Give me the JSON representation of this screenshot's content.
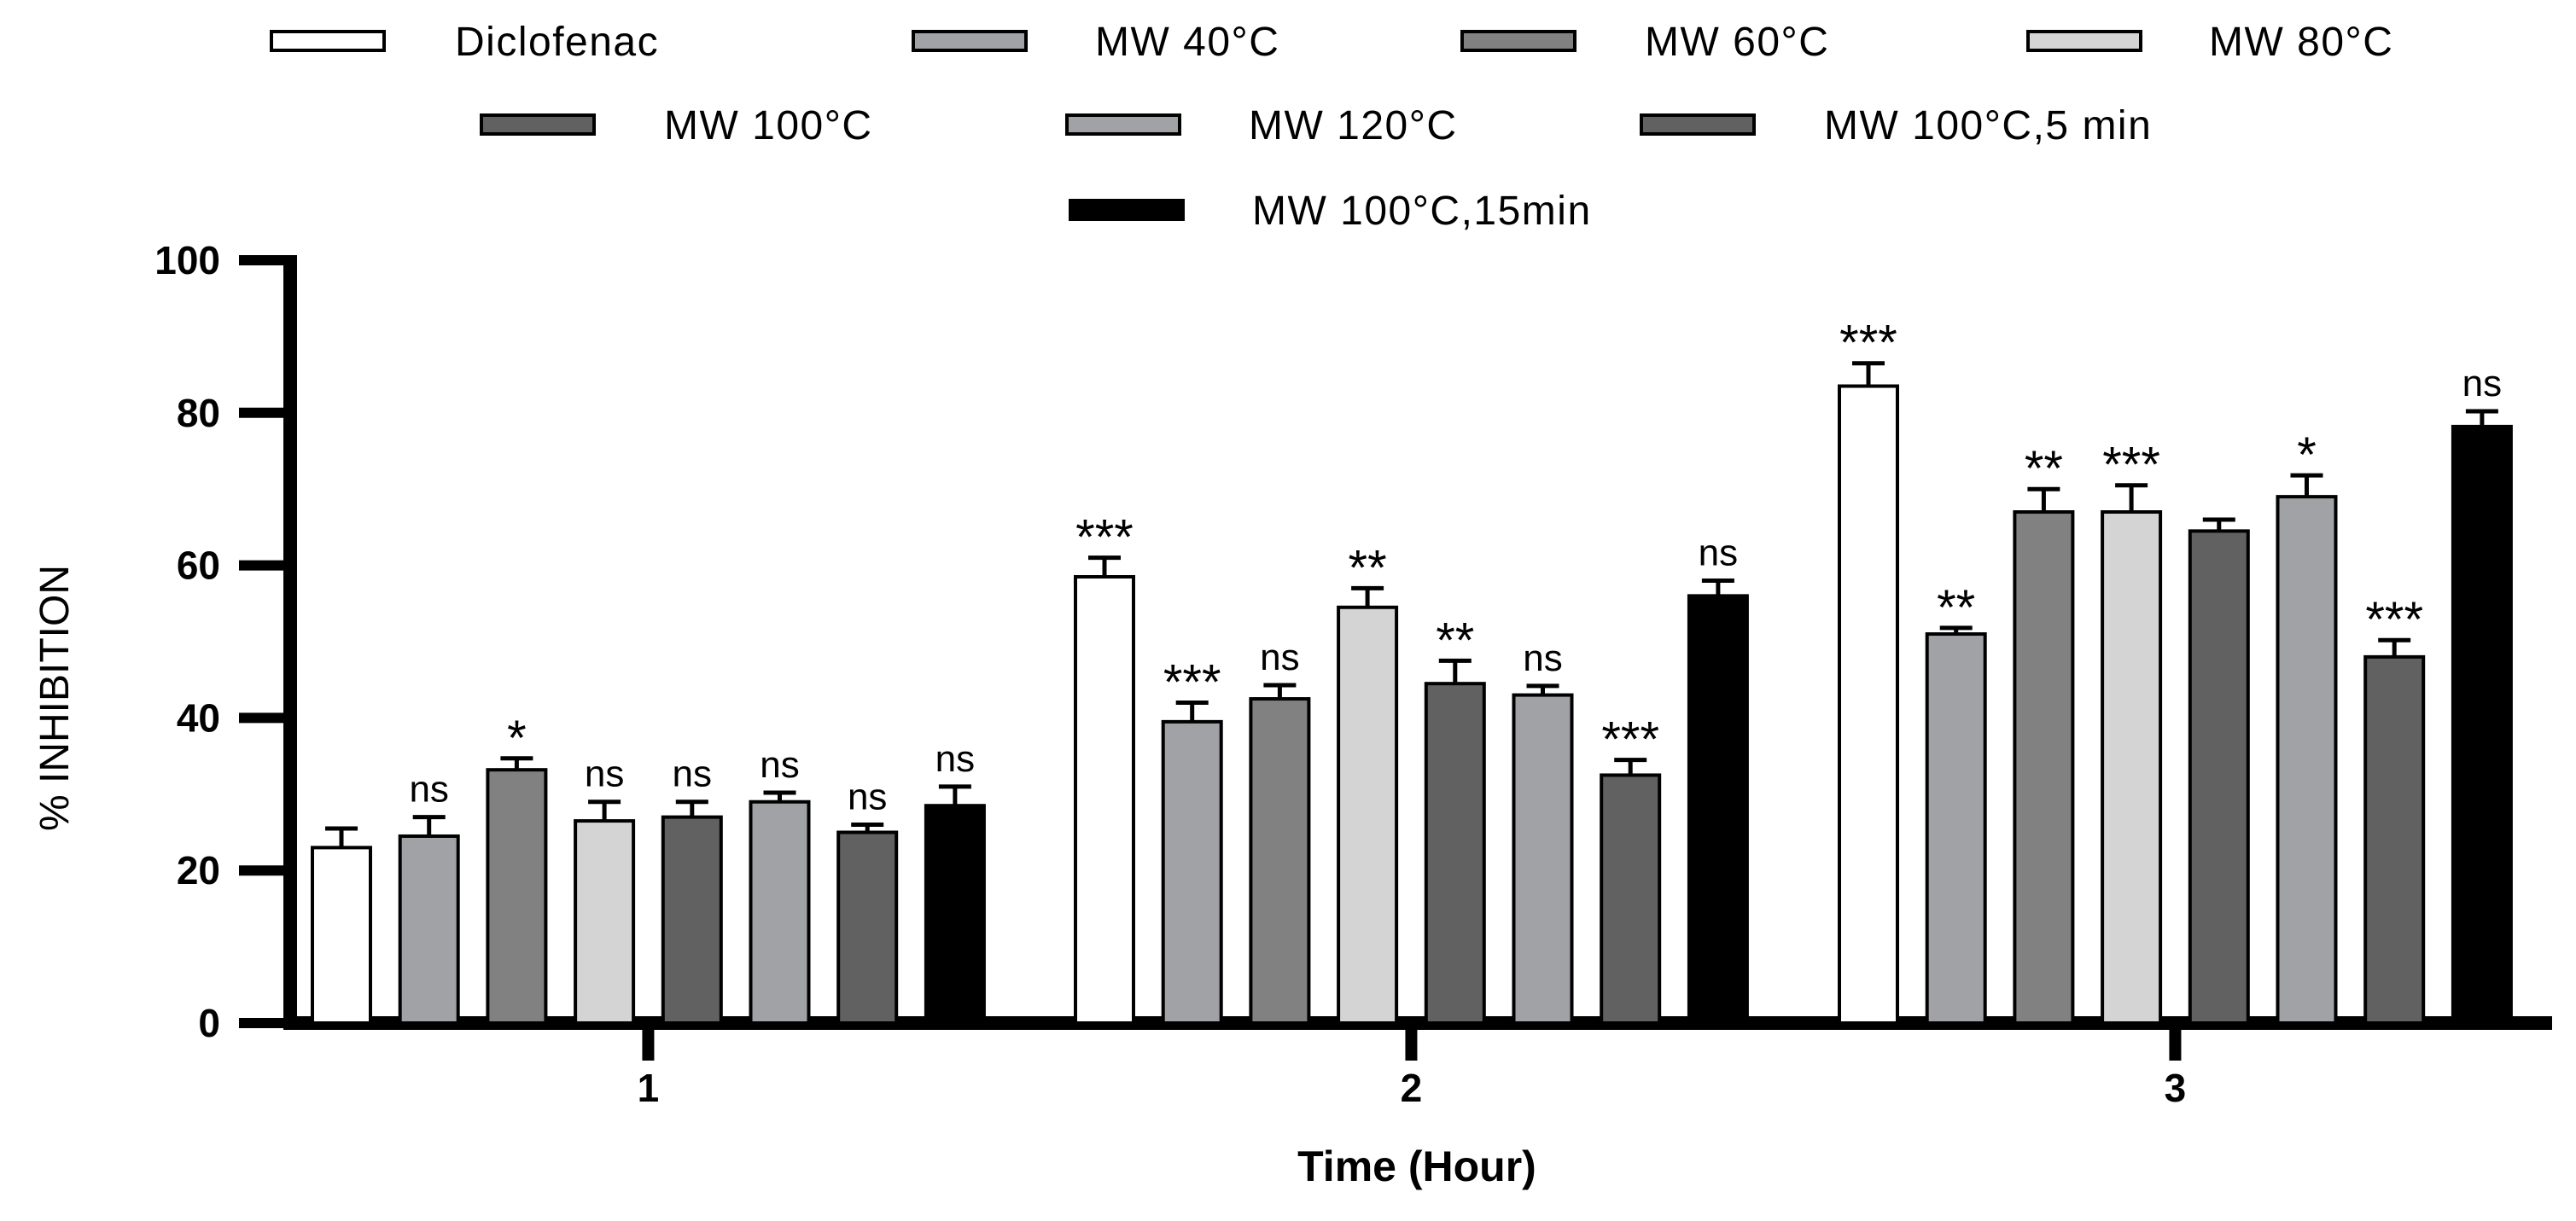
{
  "chart_data": {
    "type": "bar",
    "title": "",
    "xlabel": "Time (Hour)",
    "ylabel": "% INHIBITION",
    "ylim": [
      0,
      100
    ],
    "yticks": [
      0,
      20,
      40,
      60,
      80,
      100
    ],
    "categories": [
      "1",
      "2",
      "3"
    ],
    "legend_position": "top",
    "series": [
      {
        "name": "Diclofenac",
        "color": "#ffffff",
        "values": [
          23,
          58.5,
          83.5
        ],
        "errors": [
          2.5,
          2.5,
          3.0
        ],
        "significance": [
          "",
          "***",
          "***"
        ]
      },
      {
        "name": "MW 40°C",
        "color": "#a1a2a6",
        "values": [
          24.5,
          39.5,
          51
        ],
        "errors": [
          2.5,
          2.5,
          0.8
        ],
        "significance": [
          "ns",
          "***",
          "**"
        ]
      },
      {
        "name": "MW 60°C",
        "color": "#818181",
        "values": [
          33.2,
          42.5,
          67
        ],
        "errors": [
          1.5,
          1.8,
          3.0
        ],
        "significance": [
          "*",
          "ns",
          "**"
        ]
      },
      {
        "name": "MW 80°C",
        "color": "#d4d4d4",
        "values": [
          26.5,
          54.5,
          67
        ],
        "errors": [
          2.5,
          2.5,
          3.5
        ],
        "significance": [
          "ns",
          "**",
          "***"
        ]
      },
      {
        "name": "MW 100°C",
        "color": "#616161",
        "values": [
          27,
          44.5,
          64.5
        ],
        "errors": [
          2.0,
          3.0,
          1.5
        ],
        "significance": [
          "ns",
          "**",
          ""
        ]
      },
      {
        "name": "MW 120°C",
        "color": "#a1a2a6",
        "values": [
          29,
          43,
          69
        ],
        "errors": [
          1.2,
          1.2,
          2.8
        ],
        "significance": [
          "ns",
          "ns",
          "*"
        ]
      },
      {
        "name": "MW 100°C,5 min",
        "color": "#616161",
        "values": [
          25,
          32.5,
          48
        ],
        "errors": [
          1.0,
          2.0,
          2.2
        ],
        "significance": [
          "ns",
          "***",
          "***"
        ]
      },
      {
        "name": "MW 100°C,15min",
        "color": "#000000",
        "values": [
          28.5,
          56,
          78.2
        ],
        "errors": [
          2.5,
          2.0,
          2.0
        ],
        "significance": [
          "ns",
          "ns",
          "ns"
        ]
      }
    ]
  }
}
